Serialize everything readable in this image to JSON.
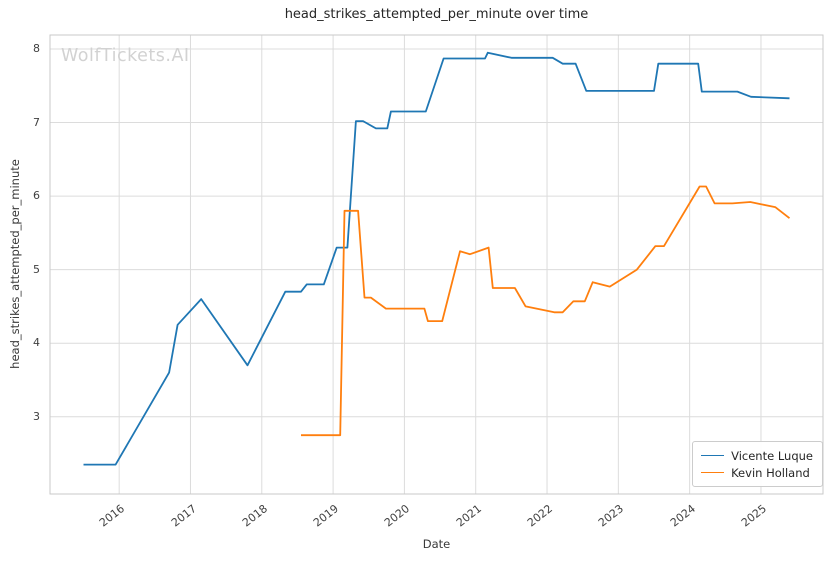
{
  "watermark": "WolfTickets.AI",
  "chart_data": {
    "type": "line",
    "title": "head_strikes_attempted_per_minute over time",
    "xlabel": "Date",
    "ylabel": "head_strikes_attempted_per_minute",
    "x_ticks": [
      2016,
      2017,
      2018,
      2019,
      2020,
      2021,
      2022,
      2023,
      2024,
      2025
    ],
    "y_ticks": [
      3,
      4,
      5,
      6,
      7,
      8
    ],
    "xlim": [
      2015.03,
      2025.87
    ],
    "ylim": [
      1.95,
      8.19
    ],
    "grid": true,
    "legend_position": "lower right",
    "style": {
      "grid_color": "#dcdcdc",
      "border_color": "#c9c9c9",
      "text_color": "#3a3a3a",
      "watermark_color": "#d2d2d2",
      "background": "#ffffff"
    },
    "series": [
      {
        "name": "Vicente Luque",
        "color": "#1f77b4",
        "points": [
          [
            2015.5,
            2.35
          ],
          [
            2015.95,
            2.35
          ],
          [
            2016.7,
            3.6
          ],
          [
            2016.82,
            4.25
          ],
          [
            2017.15,
            4.6
          ],
          [
            2017.8,
            3.7
          ],
          [
            2018.33,
            4.7
          ],
          [
            2018.55,
            4.7
          ],
          [
            2018.63,
            4.8
          ],
          [
            2018.87,
            4.8
          ],
          [
            2019.05,
            5.3
          ],
          [
            2019.2,
            5.3
          ],
          [
            2019.32,
            7.02
          ],
          [
            2019.42,
            7.02
          ],
          [
            2019.6,
            6.92
          ],
          [
            2019.76,
            6.92
          ],
          [
            2019.81,
            7.15
          ],
          [
            2020.3,
            7.15
          ],
          [
            2020.55,
            7.87
          ],
          [
            2021.13,
            7.87
          ],
          [
            2021.17,
            7.95
          ],
          [
            2021.5,
            7.88
          ],
          [
            2022.08,
            7.88
          ],
          [
            2022.22,
            7.8
          ],
          [
            2022.4,
            7.8
          ],
          [
            2022.55,
            7.43
          ],
          [
            2023.5,
            7.43
          ],
          [
            2023.56,
            7.8
          ],
          [
            2024.12,
            7.8
          ],
          [
            2024.17,
            7.42
          ],
          [
            2024.67,
            7.42
          ],
          [
            2024.86,
            7.35
          ],
          [
            2025.4,
            7.33
          ]
        ]
      },
      {
        "name": "Kevin Holland",
        "color": "#ff7f0e",
        "points": [
          [
            2018.55,
            2.75
          ],
          [
            2019.1,
            2.75
          ],
          [
            2019.16,
            5.8
          ],
          [
            2019.35,
            5.8
          ],
          [
            2019.44,
            4.62
          ],
          [
            2019.53,
            4.62
          ],
          [
            2019.74,
            4.47
          ],
          [
            2020.28,
            4.47
          ],
          [
            2020.33,
            4.3
          ],
          [
            2020.53,
            4.3
          ],
          [
            2020.78,
            5.25
          ],
          [
            2020.92,
            5.21
          ],
          [
            2021.18,
            5.3
          ],
          [
            2021.24,
            4.75
          ],
          [
            2021.55,
            4.75
          ],
          [
            2021.7,
            4.5
          ],
          [
            2022.0,
            4.44
          ],
          [
            2022.1,
            4.42
          ],
          [
            2022.22,
            4.42
          ],
          [
            2022.37,
            4.57
          ],
          [
            2022.53,
            4.57
          ],
          [
            2022.64,
            4.83
          ],
          [
            2022.88,
            4.77
          ],
          [
            2023.26,
            5.0
          ],
          [
            2023.52,
            5.32
          ],
          [
            2023.64,
            5.32
          ],
          [
            2024.14,
            6.13
          ],
          [
            2024.23,
            6.13
          ],
          [
            2024.35,
            5.9
          ],
          [
            2024.6,
            5.9
          ],
          [
            2024.85,
            5.92
          ],
          [
            2025.0,
            5.89
          ],
          [
            2025.2,
            5.85
          ],
          [
            2025.4,
            5.7
          ]
        ]
      }
    ]
  }
}
